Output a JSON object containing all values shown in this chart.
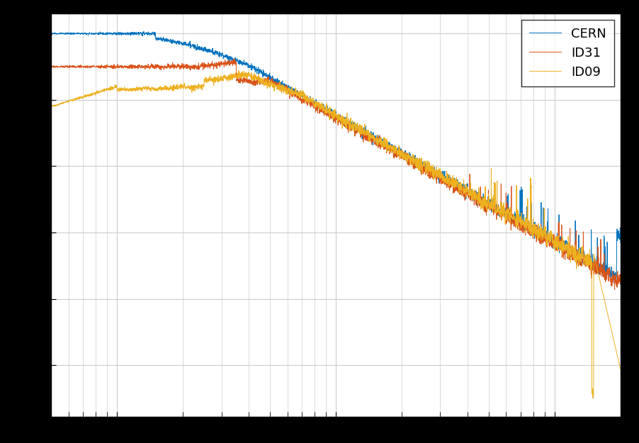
{
  "background_color": "#f0f0f0",
  "plot_bg_color": "#ffffff",
  "grid_color": "#cccccc",
  "line_CERN_color": "#0072BD",
  "line_ID31_color": "#D95319",
  "line_ID09_color": "#EDB120",
  "legend_labels": [
    "CERN",
    "ID31",
    "ID09"
  ],
  "figsize": [
    9.03,
    6.25
  ],
  "dpi": 100,
  "outer_color": "#000000"
}
